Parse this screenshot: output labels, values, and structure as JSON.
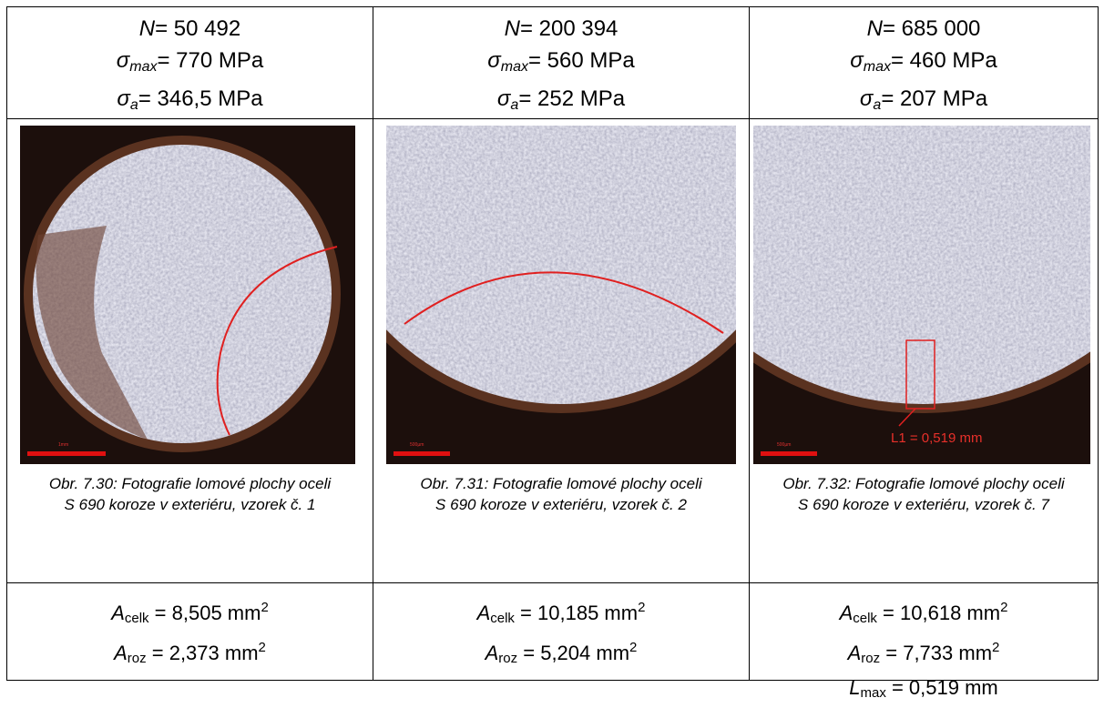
{
  "table": {
    "header": [
      [
        {
          "sym": "N",
          "value": "= 50 492"
        },
        {
          "sym": "σ",
          "sub": "max",
          "value": "=  770 MPa"
        },
        {
          "sym": "σ",
          "sub": "a",
          "value": "= 346,5 MPa"
        }
      ],
      [
        {
          "sym": "N",
          "value": "= 200 394"
        },
        {
          "sym": "σ",
          "sub": "max",
          "value": "= 560 MPa"
        },
        {
          "sym": "σ",
          "sub": "a",
          "value": "= 252 MPa"
        }
      ],
      [
        {
          "sym": "N",
          "value": "= 685 000"
        },
        {
          "sym": "σ",
          "sub": "max",
          "value": "= 460 MPa"
        },
        {
          "sym": "σ",
          "sub": "a",
          "value": "= 207 MPa"
        }
      ]
    ],
    "figures": [
      {
        "scale": "1mm"
      },
      {
        "scale": "500µm"
      },
      {
        "scale": "500µm",
        "measure": "L1 = 0,519 mm"
      }
    ],
    "captions": [
      "Obr. 7.30: Fotografie lomové plochy oceli S 690 koroze v exteriéru, vzorek č. 1",
      "Obr. 7.31: Fotografie lomové plochy oceli S 690 koroze v exteriéru, vzorek č. 2",
      "Obr. 7.32: Fotografie lomové plochy oceli S 690 koroze v exteriéru, vzorek č. 7"
    ],
    "results": [
      [
        {
          "sym": "A",
          "sub": "celk",
          "value": " = 8,505 mm",
          "sup": "2"
        },
        {
          "sym": "A",
          "sub": "roz",
          "value": " = 2,373 mm",
          "sup": "2"
        }
      ],
      [
        {
          "sym": "A",
          "sub": "celk",
          "value": " = 10,185 mm",
          "sup": "2"
        },
        {
          "sym": "A",
          "sub": "roz",
          "value": " = 5,204 mm",
          "sup": "2"
        }
      ],
      [
        {
          "sym": "A",
          "sub": "celk",
          "value": " = 10,618 mm",
          "sup": "2"
        },
        {
          "sym": "A",
          "sub": "roz",
          "value": " = 7,733 mm",
          "sup": "2"
        },
        {
          "sym": "L",
          "sub": "max",
          "value": " = 0,519 mm"
        }
      ]
    ]
  }
}
